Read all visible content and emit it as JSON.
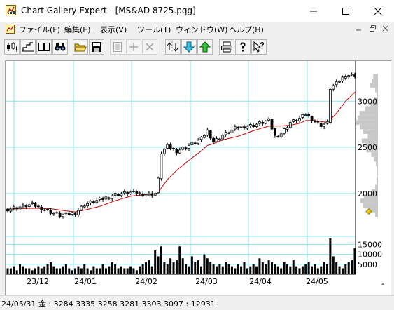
{
  "window": {
    "title": "Chart Gallery Expert - [MS&AD 8725.pqg]"
  },
  "menu": {
    "items": [
      {
        "id": "file",
        "label": "ファイル(F)"
      },
      {
        "id": "edit",
        "label": "編集(E)"
      },
      {
        "id": "view",
        "label": "表示(V)"
      },
      {
        "id": "tools",
        "label": "ツール(T)"
      },
      {
        "id": "window",
        "label": "ウィンドウ(W)"
      },
      {
        "id": "help",
        "label": "ヘルプ(H)"
      }
    ]
  },
  "toolbar": {
    "buttons": [
      {
        "id": "candle",
        "icon": "candlestick-icon",
        "enabled": true
      },
      {
        "id": "step",
        "icon": "step-chart-icon",
        "enabled": true
      },
      {
        "id": "dual",
        "icon": "dual-pane-icon",
        "enabled": true
      },
      {
        "id": "search",
        "icon": "binoculars-icon",
        "enabled": true
      },
      {
        "id": "open",
        "icon": "open-folder-icon",
        "enabled": true
      },
      {
        "id": "save",
        "icon": "save-disk-icon",
        "enabled": true
      },
      {
        "id": "props",
        "icon": "properties-icon",
        "enabled": false
      },
      {
        "id": "add",
        "icon": "plus-icon",
        "enabled": false
      },
      {
        "id": "remove",
        "icon": "cross-icon",
        "enabled": false
      },
      {
        "id": "arrows",
        "icon": "split-arrows-icon",
        "enabled": true
      },
      {
        "id": "down",
        "icon": "arrow-down-icon",
        "enabled": true
      },
      {
        "id": "up",
        "icon": "arrow-up-icon",
        "enabled": true
      },
      {
        "id": "print",
        "icon": "printer-icon",
        "enabled": true
      },
      {
        "id": "help",
        "icon": "help-icon",
        "enabled": true
      },
      {
        "id": "context-help",
        "icon": "context-help-icon",
        "enabled": true
      }
    ]
  },
  "chart_data": {
    "type": "candlestick",
    "x_ticks": [
      "23/12",
      "24/01",
      "24/02",
      "24/03",
      "24/04",
      "24/05"
    ],
    "price_ticks": [
      3000,
      2500,
      2000
    ],
    "price_range": [
      1535,
      3420
    ],
    "volume_ticks_text": [
      "15000",
      "10000",
      "5000"
    ],
    "volume_ticks": [
      15000,
      10000,
      5000
    ],
    "volume_max": 19000,
    "moving_average": {
      "color": "#c00000"
    },
    "volume_profile_color": "#c8c8c8",
    "last_price_marker_color": "#e6c800",
    "grid": true,
    "grid_color": "#80e8f0",
    "waypoints": [
      [
        0,
        1830,
        1830
      ],
      [
        8,
        1880,
        1840
      ],
      [
        14,
        1800,
        1835
      ],
      [
        17,
        1760,
        1820
      ],
      [
        22,
        1790,
        1800
      ],
      [
        25,
        1880,
        1820
      ],
      [
        30,
        1930,
        1860
      ],
      [
        35,
        1990,
        1920
      ],
      [
        40,
        2010,
        1970
      ],
      [
        45,
        1990,
        1990
      ],
      [
        48,
        2000,
        1995
      ],
      [
        49,
        2150,
        2010
      ],
      [
        50,
        2440,
        2060
      ],
      [
        52,
        2510,
        2150
      ],
      [
        55,
        2460,
        2250
      ],
      [
        59,
        2520,
        2360
      ],
      [
        63,
        2590,
        2460
      ],
      [
        65,
        2680,
        2520
      ],
      [
        67,
        2560,
        2540
      ],
      [
        70,
        2630,
        2580
      ],
      [
        75,
        2720,
        2620
      ],
      [
        80,
        2740,
        2680
      ],
      [
        85,
        2790,
        2730
      ],
      [
        87,
        2620,
        2730
      ],
      [
        89,
        2650,
        2730
      ],
      [
        92,
        2770,
        2740
      ],
      [
        95,
        2810,
        2760
      ],
      [
        97,
        2860,
        2790
      ],
      [
        100,
        2780,
        2790
      ],
      [
        102,
        2740,
        2780
      ],
      [
        104,
        2760,
        2770
      ],
      [
        105,
        3140,
        2800
      ],
      [
        107,
        3190,
        2870
      ],
      [
        110,
        3284,
        3000
      ],
      [
        113,
        3281,
        3097
      ]
    ],
    "volume": [
      3,
      3,
      4,
      2,
      5,
      4,
      3,
      3,
      2,
      3,
      4,
      3,
      4,
      5,
      6,
      4,
      3,
      3,
      4,
      5,
      3,
      2,
      3,
      4,
      3,
      5,
      3,
      2,
      4,
      3,
      3,
      5,
      3,
      4,
      6,
      5,
      3,
      4,
      3,
      3,
      4,
      3,
      2,
      4,
      5,
      6,
      7,
      4,
      12,
      9,
      14,
      6,
      5,
      8,
      6,
      7,
      14,
      8,
      5,
      4,
      9,
      6,
      7,
      4,
      10,
      8,
      6,
      5,
      4,
      5,
      4,
      6,
      5,
      4,
      3,
      5,
      4,
      6,
      3,
      4,
      5,
      4,
      8,
      6,
      5,
      7,
      6,
      5,
      4,
      3,
      6,
      5,
      4,
      7,
      4,
      3,
      4,
      5,
      6,
      4,
      5,
      3,
      4,
      6,
      5,
      18,
      9,
      6,
      4,
      3,
      5,
      6,
      7,
      13
    ],
    "volume_profile": [
      [
        3270,
        7
      ],
      [
        3220,
        9
      ],
      [
        3170,
        12
      ],
      [
        3120,
        4
      ],
      [
        3070,
        2
      ],
      [
        3020,
        6
      ],
      [
        2970,
        11
      ],
      [
        2920,
        19
      ],
      [
        2870,
        27
      ],
      [
        2820,
        30
      ],
      [
        2770,
        33
      ],
      [
        2720,
        27
      ],
      [
        2670,
        22
      ],
      [
        2620,
        15
      ],
      [
        2570,
        24
      ],
      [
        2520,
        18
      ],
      [
        2470,
        17
      ],
      [
        2420,
        10
      ],
      [
        2370,
        6
      ],
      [
        2320,
        3
      ],
      [
        2270,
        2
      ],
      [
        2220,
        2
      ],
      [
        2170,
        1
      ],
      [
        2120,
        2
      ],
      [
        2070,
        4
      ],
      [
        2020,
        9
      ],
      [
        1970,
        21
      ],
      [
        1920,
        26
      ],
      [
        1870,
        22
      ],
      [
        1820,
        14
      ],
      [
        1770,
        4
      ]
    ]
  },
  "status": {
    "text": "24/05/31 金 : 3284 3335 3258 3281  3303 3097 : 12931"
  }
}
